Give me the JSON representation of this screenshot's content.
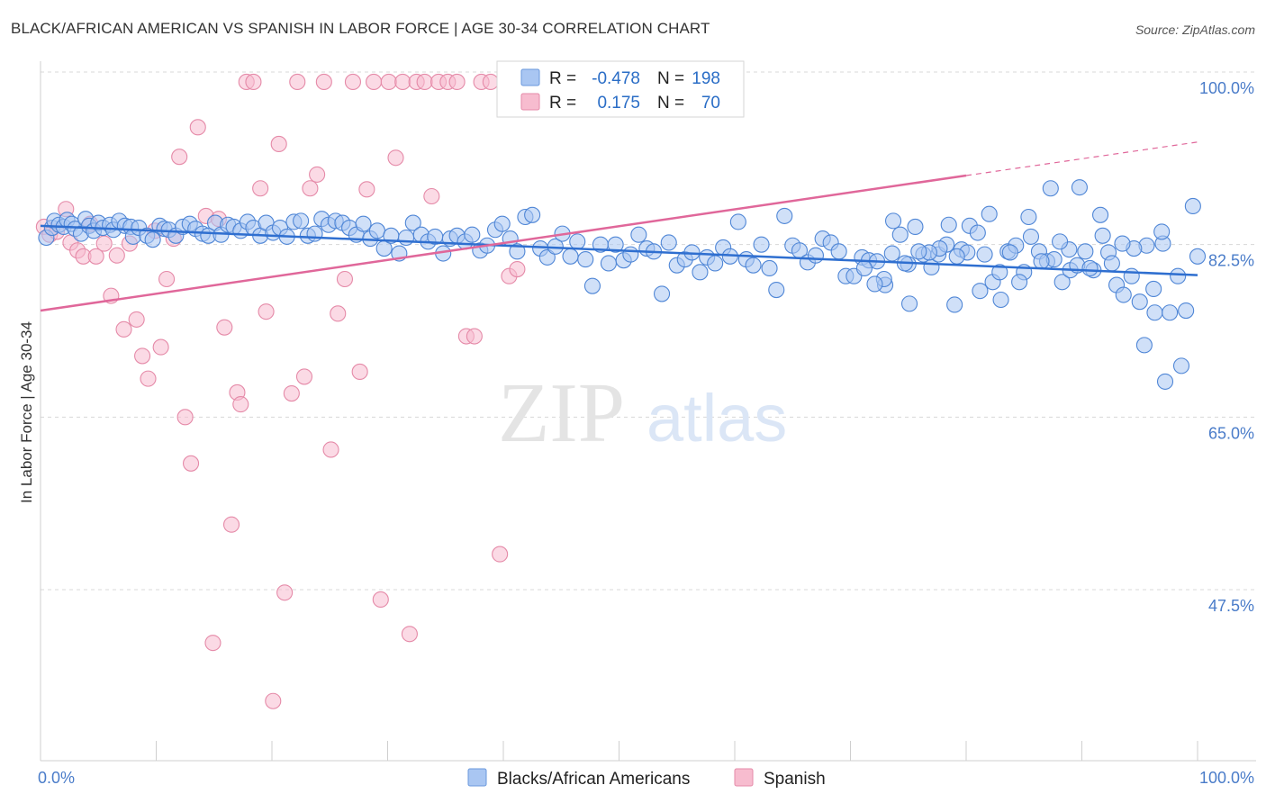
{
  "title": "BLACK/AFRICAN AMERICAN VS SPANISH IN LABOR FORCE | AGE 30-34 CORRELATION CHART",
  "source": "Source: ZipAtlas.com",
  "watermark": {
    "zip": "ZIP",
    "atlas": "atlas"
  },
  "colors": {
    "blue_fill": "#a9c6f2",
    "blue_stroke": "#4f86d6",
    "blue_line": "#2f6fd0",
    "pink_fill": "#f7bccf",
    "pink_stroke": "#e58aa8",
    "pink_line": "#e0679a",
    "grid": "#d8d8d8",
    "axis_text": "#4a7cc9"
  },
  "legend": {
    "rows": [
      {
        "r_label": "R =",
        "r_value": "-0.478",
        "n_label": "N =",
        "n_value": "198"
      },
      {
        "r_label": "R =",
        "r_value": "0.175",
        "n_label": "N =",
        "n_value": "70"
      }
    ]
  },
  "bottom_legend": [
    "Blacks/African Americans",
    "Spanish"
  ],
  "chart_data": {
    "type": "scatter",
    "ylabel": "In Labor Force | Age 30-34",
    "xlim": [
      0,
      100
    ],
    "ylim": [
      29.5,
      100
    ],
    "x_tick_labels": [
      "0.0%",
      "100.0%"
    ],
    "y_ticks": [
      47.5,
      65.0,
      82.5,
      100.0
    ],
    "y_tick_labels": [
      "47.5%",
      "65.0%",
      "82.5%",
      "100.0%"
    ],
    "grid": "horizontal dashed",
    "series": [
      {
        "name": "Blacks/African Americans",
        "trend": {
          "x": [
            0,
            100
          ],
          "y": [
            84.4,
            79.4
          ]
        },
        "points": [
          [
            0.5,
            83.2
          ],
          [
            1,
            84.2
          ],
          [
            1.2,
            84.9
          ],
          [
            1.6,
            84.5
          ],
          [
            2,
            84.3
          ],
          [
            2.3,
            85
          ],
          [
            2.7,
            84.6
          ],
          [
            3,
            84.1
          ],
          [
            3.5,
            83.6
          ],
          [
            3.9,
            85.1
          ],
          [
            4.2,
            84.4
          ],
          [
            4.6,
            83.9
          ],
          [
            5,
            84.7
          ],
          [
            5.4,
            84.2
          ],
          [
            6,
            84.5
          ],
          [
            6.3,
            84
          ],
          [
            6.8,
            84.9
          ],
          [
            7.3,
            84.4
          ],
          [
            7.8,
            84.3
          ],
          [
            8,
            83.3
          ],
          [
            8.5,
            84.2
          ],
          [
            9.2,
            83.4
          ],
          [
            9.7,
            83
          ],
          [
            10.3,
            84.4
          ],
          [
            10.7,
            84.1
          ],
          [
            11.1,
            84
          ],
          [
            11.7,
            83.4
          ],
          [
            12.3,
            84.3
          ],
          [
            12.9,
            84.6
          ],
          [
            13.4,
            84.1
          ],
          [
            14,
            83.6
          ],
          [
            14.5,
            83.4
          ],
          [
            15.1,
            84.7
          ],
          [
            15.6,
            83.5
          ],
          [
            16.2,
            84.5
          ],
          [
            16.7,
            84.3
          ],
          [
            17.3,
            83.9
          ],
          [
            17.9,
            84.8
          ],
          [
            18.4,
            84.2
          ],
          [
            19,
            83.4
          ],
          [
            19.5,
            84.7
          ],
          [
            20.1,
            83.7
          ],
          [
            20.7,
            84.2
          ],
          [
            21.3,
            83.3
          ],
          [
            21.9,
            84.8
          ],
          [
            22.5,
            84.9
          ],
          [
            23.1,
            83.4
          ],
          [
            23.7,
            83.6
          ],
          [
            24.3,
            85.1
          ],
          [
            24.9,
            84.5
          ],
          [
            25.5,
            84.9
          ],
          [
            26.1,
            84.7
          ],
          [
            26.7,
            84.2
          ],
          [
            27.3,
            83.5
          ],
          [
            27.9,
            84.6
          ],
          [
            28.5,
            83.1
          ],
          [
            29.1,
            83.9
          ],
          [
            29.7,
            82.1
          ],
          [
            30.3,
            83.4
          ],
          [
            31,
            81.6
          ],
          [
            31.6,
            83.2
          ],
          [
            32.2,
            84.7
          ],
          [
            32.9,
            83.5
          ],
          [
            33.5,
            82.8
          ],
          [
            34.1,
            83.3
          ],
          [
            34.8,
            81.6
          ],
          [
            35.4,
            83.1
          ],
          [
            36,
            83.4
          ],
          [
            36.7,
            82.8
          ],
          [
            37.3,
            83.5
          ],
          [
            38,
            81.9
          ],
          [
            38.6,
            82.4
          ],
          [
            39.3,
            84
          ],
          [
            39.9,
            84.6
          ],
          [
            40.6,
            83.1
          ],
          [
            41.2,
            81.8
          ],
          [
            41.9,
            85.3
          ],
          [
            42.5,
            85.5
          ],
          [
            43.2,
            82.1
          ],
          [
            43.8,
            81.2
          ],
          [
            44.5,
            82.3
          ],
          [
            45.1,
            83.6
          ],
          [
            45.8,
            81.3
          ],
          [
            46.4,
            82.8
          ],
          [
            47.1,
            81
          ],
          [
            47.7,
            78.3
          ],
          [
            48.4,
            82.5
          ],
          [
            49.1,
            80.6
          ],
          [
            49.7,
            82.5
          ],
          [
            50.4,
            80.9
          ],
          [
            51,
            81.5
          ],
          [
            51.7,
            83.5
          ],
          [
            52.4,
            82.1
          ],
          [
            53,
            81.8
          ],
          [
            53.7,
            77.5
          ],
          [
            54.3,
            82.7
          ],
          [
            55,
            80.4
          ],
          [
            55.7,
            81
          ],
          [
            56.3,
            81.7
          ],
          [
            57,
            79.7
          ],
          [
            57.6,
            81.2
          ],
          [
            58.3,
            80.6
          ],
          [
            59,
            82.2
          ],
          [
            59.6,
            81.3
          ],
          [
            60.3,
            84.8
          ],
          [
            61,
            81
          ],
          [
            61.6,
            80.4
          ],
          [
            62.3,
            82.5
          ],
          [
            63,
            80.1
          ],
          [
            63.6,
            77.9
          ],
          [
            64.3,
            85.4
          ],
          [
            65,
            82.4
          ],
          [
            65.6,
            81.9
          ],
          [
            66.3,
            80.7
          ],
          [
            67,
            81.4
          ],
          [
            67.6,
            83.1
          ],
          [
            68.3,
            82.7
          ],
          [
            69,
            81.8
          ],
          [
            69.6,
            79.3
          ],
          [
            70.3,
            79.3
          ],
          [
            71,
            81.2
          ],
          [
            71.6,
            80.9
          ],
          [
            72.3,
            80.8
          ],
          [
            73,
            78.4
          ],
          [
            73.6,
            81.6
          ],
          [
            74.3,
            83.5
          ],
          [
            75,
            80.5
          ],
          [
            75.6,
            84.3
          ],
          [
            76.3,
            81.5
          ],
          [
            77,
            80.2
          ],
          [
            77.6,
            81.5
          ],
          [
            78.3,
            82.5
          ],
          [
            79,
            76.4
          ],
          [
            79.6,
            82
          ],
          [
            80.3,
            84.4
          ],
          [
            81,
            83.7
          ],
          [
            81.6,
            81.5
          ],
          [
            82.3,
            78.7
          ],
          [
            83,
            76.9
          ],
          [
            83.6,
            81.8
          ],
          [
            84.3,
            82.4
          ],
          [
            85,
            79.7
          ],
          [
            85.6,
            83.3
          ],
          [
            86.3,
            81.8
          ],
          [
            87,
            80.8
          ],
          [
            87.6,
            81
          ],
          [
            88.3,
            78.7
          ],
          [
            89,
            79.9
          ],
          [
            89.6,
            80.4
          ],
          [
            90.3,
            81.8
          ],
          [
            91,
            79.9
          ],
          [
            91.6,
            85.5
          ],
          [
            92.3,
            81.7
          ],
          [
            93,
            78.4
          ],
          [
            93.6,
            77.4
          ],
          [
            94.3,
            79.3
          ],
          [
            95,
            76.7
          ],
          [
            95.6,
            82.4
          ],
          [
            96.3,
            75.6
          ],
          [
            97,
            82.6
          ],
          [
            97.6,
            75.6
          ],
          [
            98.3,
            79.3
          ],
          [
            99,
            75.8
          ],
          [
            99.6,
            86.4
          ],
          [
            100,
            81.3
          ],
          [
            98.6,
            70.2
          ],
          [
            97.2,
            68.6
          ],
          [
            96.9,
            83.8
          ],
          [
            96.2,
            78
          ],
          [
            95.4,
            72.3
          ],
          [
            94.5,
            82.1
          ],
          [
            93.5,
            82.6
          ],
          [
            92.6,
            80.6
          ],
          [
            91.8,
            83.4
          ],
          [
            90.7,
            80.1
          ],
          [
            89.8,
            88.3
          ],
          [
            88.9,
            82
          ],
          [
            88.1,
            82.8
          ],
          [
            87.3,
            88.2
          ],
          [
            86.5,
            80.8
          ],
          [
            85.4,
            85.3
          ],
          [
            84.6,
            78.7
          ],
          [
            83.8,
            81.7
          ],
          [
            82.9,
            79.7
          ],
          [
            82,
            85.6
          ],
          [
            81.2,
            77.8
          ],
          [
            80.1,
            81.7
          ],
          [
            79.2,
            81.3
          ],
          [
            78.5,
            84.5
          ],
          [
            77.7,
            82.1
          ],
          [
            76.8,
            81.7
          ],
          [
            75.9,
            81.8
          ],
          [
            75.1,
            76.5
          ],
          [
            74.7,
            80.6
          ],
          [
            73.7,
            84.9
          ],
          [
            72.9,
            79
          ],
          [
            72.1,
            78.5
          ],
          [
            71.2,
            80.1
          ]
        ]
      },
      {
        "name": "Spanish",
        "trend": {
          "x": [
            0,
            80
          ],
          "y": [
            75.8,
            89.5
          ]
        },
        "trend_dashed": {
          "x": [
            80,
            100
          ],
          "y": [
            89.5,
            92.9
          ]
        },
        "points": [
          [
            0.3,
            84.3
          ],
          [
            0.8,
            83.5
          ],
          [
            1.4,
            83.8
          ],
          [
            2.2,
            86.1
          ],
          [
            2.6,
            82.7
          ],
          [
            3.2,
            81.9
          ],
          [
            3.7,
            81.3
          ],
          [
            4.3,
            84.6
          ],
          [
            4.8,
            81.3
          ],
          [
            5.5,
            82.6
          ],
          [
            6.1,
            77.3
          ],
          [
            6.6,
            81.4
          ],
          [
            7.2,
            73.9
          ],
          [
            7.7,
            82.6
          ],
          [
            8.3,
            74.9
          ],
          [
            8.8,
            71.2
          ],
          [
            9.3,
            68.9
          ],
          [
            9.9,
            83.9
          ],
          [
            10.4,
            72.1
          ],
          [
            10.9,
            79
          ],
          [
            11.5,
            83.1
          ],
          [
            12,
            91.4
          ],
          [
            12.5,
            65
          ],
          [
            13,
            60.3
          ],
          [
            13.6,
            94.4
          ],
          [
            14.3,
            85.4
          ],
          [
            14.9,
            42.1
          ],
          [
            15.4,
            85.1
          ],
          [
            15.9,
            74.1
          ],
          [
            16.5,
            54.1
          ],
          [
            17,
            67.5
          ],
          [
            17.3,
            66.3
          ],
          [
            17.8,
            99
          ],
          [
            18.4,
            99
          ],
          [
            19,
            88.2
          ],
          [
            19.5,
            75.7
          ],
          [
            20.1,
            36.2
          ],
          [
            20.6,
            92.7
          ],
          [
            21.1,
            47.2
          ],
          [
            21.7,
            67.4
          ],
          [
            22.2,
            99
          ],
          [
            22.8,
            69.1
          ],
          [
            23.3,
            88.2
          ],
          [
            23.9,
            89.6
          ],
          [
            24.5,
            99
          ],
          [
            25.1,
            61.7
          ],
          [
            25.7,
            75.5
          ],
          [
            26.3,
            79
          ],
          [
            27,
            99
          ],
          [
            27.6,
            69.6
          ],
          [
            28.2,
            88.1
          ],
          [
            28.8,
            99
          ],
          [
            29.4,
            46.5
          ],
          [
            30.1,
            99
          ],
          [
            30.7,
            91.3
          ],
          [
            31.3,
            99
          ],
          [
            31.9,
            43
          ],
          [
            32.5,
            99
          ],
          [
            33.2,
            99
          ],
          [
            33.8,
            87.4
          ],
          [
            34.4,
            99
          ],
          [
            35.2,
            99
          ],
          [
            36,
            99
          ],
          [
            36.8,
            73.2
          ],
          [
            37.5,
            73.2
          ],
          [
            38.1,
            99
          ],
          [
            38.9,
            99
          ],
          [
            39.7,
            51.1
          ],
          [
            40.5,
            79.3
          ],
          [
            41.2,
            80
          ]
        ]
      }
    ]
  }
}
